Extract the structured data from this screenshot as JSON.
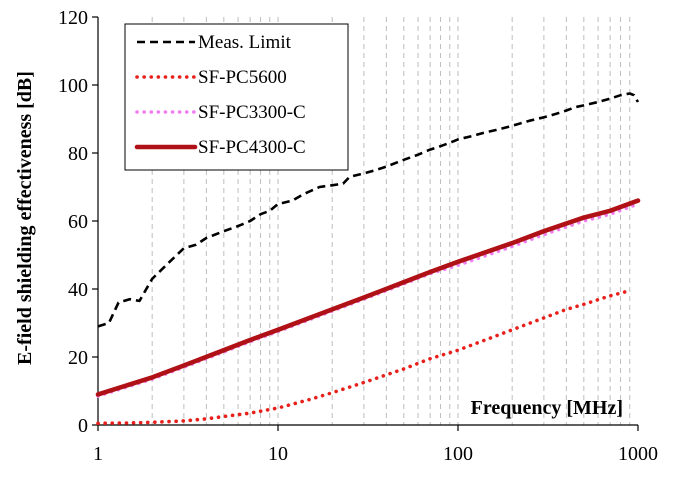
{
  "chart_data": {
    "type": "line",
    "title": "",
    "xlabel": "Frequency [MHz]",
    "ylabel": "E-field shielding effectiveness [dB]",
    "x_scale": "log",
    "xlim": [
      1,
      1000
    ],
    "ylim": [
      0,
      120
    ],
    "x_ticks": [
      1,
      10,
      100,
      1000
    ],
    "x_tick_labels": [
      "1",
      "10",
      "100",
      "1000"
    ],
    "y_ticks": [
      0,
      20,
      40,
      60,
      80,
      100,
      120
    ],
    "y_tick_labels": [
      "0",
      "20",
      "40",
      "60",
      "80",
      "100",
      "120"
    ],
    "grid": "vertical dashed (log minor), none horizontal",
    "legend_position": "top-left",
    "series": [
      {
        "name": "Meas. Limit",
        "color": "#000000",
        "style": "dashed",
        "points": [
          [
            1,
            29
          ],
          [
            1.15,
            30
          ],
          [
            1.3,
            36
          ],
          [
            1.5,
            37
          ],
          [
            1.7,
            36.5
          ],
          [
            2,
            43
          ],
          [
            2.5,
            48
          ],
          [
            3,
            52
          ],
          [
            3.5,
            53
          ],
          [
            4,
            55
          ],
          [
            5,
            57
          ],
          [
            6,
            58.5
          ],
          [
            7,
            60
          ],
          [
            8,
            62
          ],
          [
            9,
            63
          ],
          [
            10,
            65
          ],
          [
            12,
            66
          ],
          [
            14,
            68
          ],
          [
            17,
            70
          ],
          [
            20,
            70.5
          ],
          [
            23,
            71
          ],
          [
            25,
            73
          ],
          [
            30,
            74
          ],
          [
            35,
            75
          ],
          [
            40,
            76
          ],
          [
            50,
            78
          ],
          [
            60,
            79.5
          ],
          [
            70,
            81
          ],
          [
            80,
            82
          ],
          [
            90,
            83
          ],
          [
            100,
            84
          ],
          [
            120,
            85
          ],
          [
            140,
            86
          ],
          [
            170,
            87
          ],
          [
            200,
            88
          ],
          [
            250,
            89.5
          ],
          [
            300,
            90.5
          ],
          [
            350,
            91.5
          ],
          [
            400,
            92.5
          ],
          [
            450,
            93.5
          ],
          [
            500,
            94
          ],
          [
            600,
            95
          ],
          [
            700,
            96
          ],
          [
            800,
            97
          ],
          [
            900,
            97.5
          ],
          [
            950,
            97
          ],
          [
            1000,
            95
          ]
        ]
      },
      {
        "name": "SF-PC5600",
        "color": "#e8201c",
        "style": "dotted",
        "points": [
          [
            1,
            0.5
          ],
          [
            1.5,
            0.6
          ],
          [
            2,
            0.8
          ],
          [
            3,
            1.2
          ],
          [
            4,
            1.8
          ],
          [
            5,
            2.5
          ],
          [
            7,
            3.5
          ],
          [
            10,
            5
          ],
          [
            15,
            7.5
          ],
          [
            20,
            9.5
          ],
          [
            30,
            12.5
          ],
          [
            50,
            16.5
          ],
          [
            70,
            19.5
          ],
          [
            100,
            22
          ],
          [
            150,
            25.5
          ],
          [
            200,
            28
          ],
          [
            300,
            31.5
          ],
          [
            400,
            34
          ],
          [
            500,
            35.5
          ],
          [
            700,
            38
          ],
          [
            900,
            39.5
          ]
        ]
      },
      {
        "name": "SF-PC3300-C",
        "color": "#f07ef0",
        "style": "dotted",
        "points": [
          [
            1,
            8.5
          ],
          [
            2,
            13.5
          ],
          [
            3,
            17
          ],
          [
            5,
            21.5
          ],
          [
            7,
            24.5
          ],
          [
            10,
            27.5
          ],
          [
            20,
            33.5
          ],
          [
            30,
            37
          ],
          [
            50,
            41.5
          ],
          [
            70,
            44.5
          ],
          [
            100,
            47
          ],
          [
            200,
            52.5
          ],
          [
            300,
            56
          ],
          [
            500,
            60
          ],
          [
            700,
            62
          ],
          [
            1000,
            65
          ]
        ]
      },
      {
        "name": "SF-PC4300-C",
        "color": "#b01116",
        "style": "solid",
        "points": [
          [
            1,
            9
          ],
          [
            2,
            14
          ],
          [
            3,
            17.5
          ],
          [
            5,
            22
          ],
          [
            7,
            25
          ],
          [
            10,
            28
          ],
          [
            20,
            34
          ],
          [
            30,
            37.5
          ],
          [
            50,
            42
          ],
          [
            70,
            45
          ],
          [
            100,
            48
          ],
          [
            200,
            53.5
          ],
          [
            300,
            57
          ],
          [
            500,
            61
          ],
          [
            700,
            63
          ],
          [
            1000,
            66
          ]
        ]
      }
    ]
  }
}
